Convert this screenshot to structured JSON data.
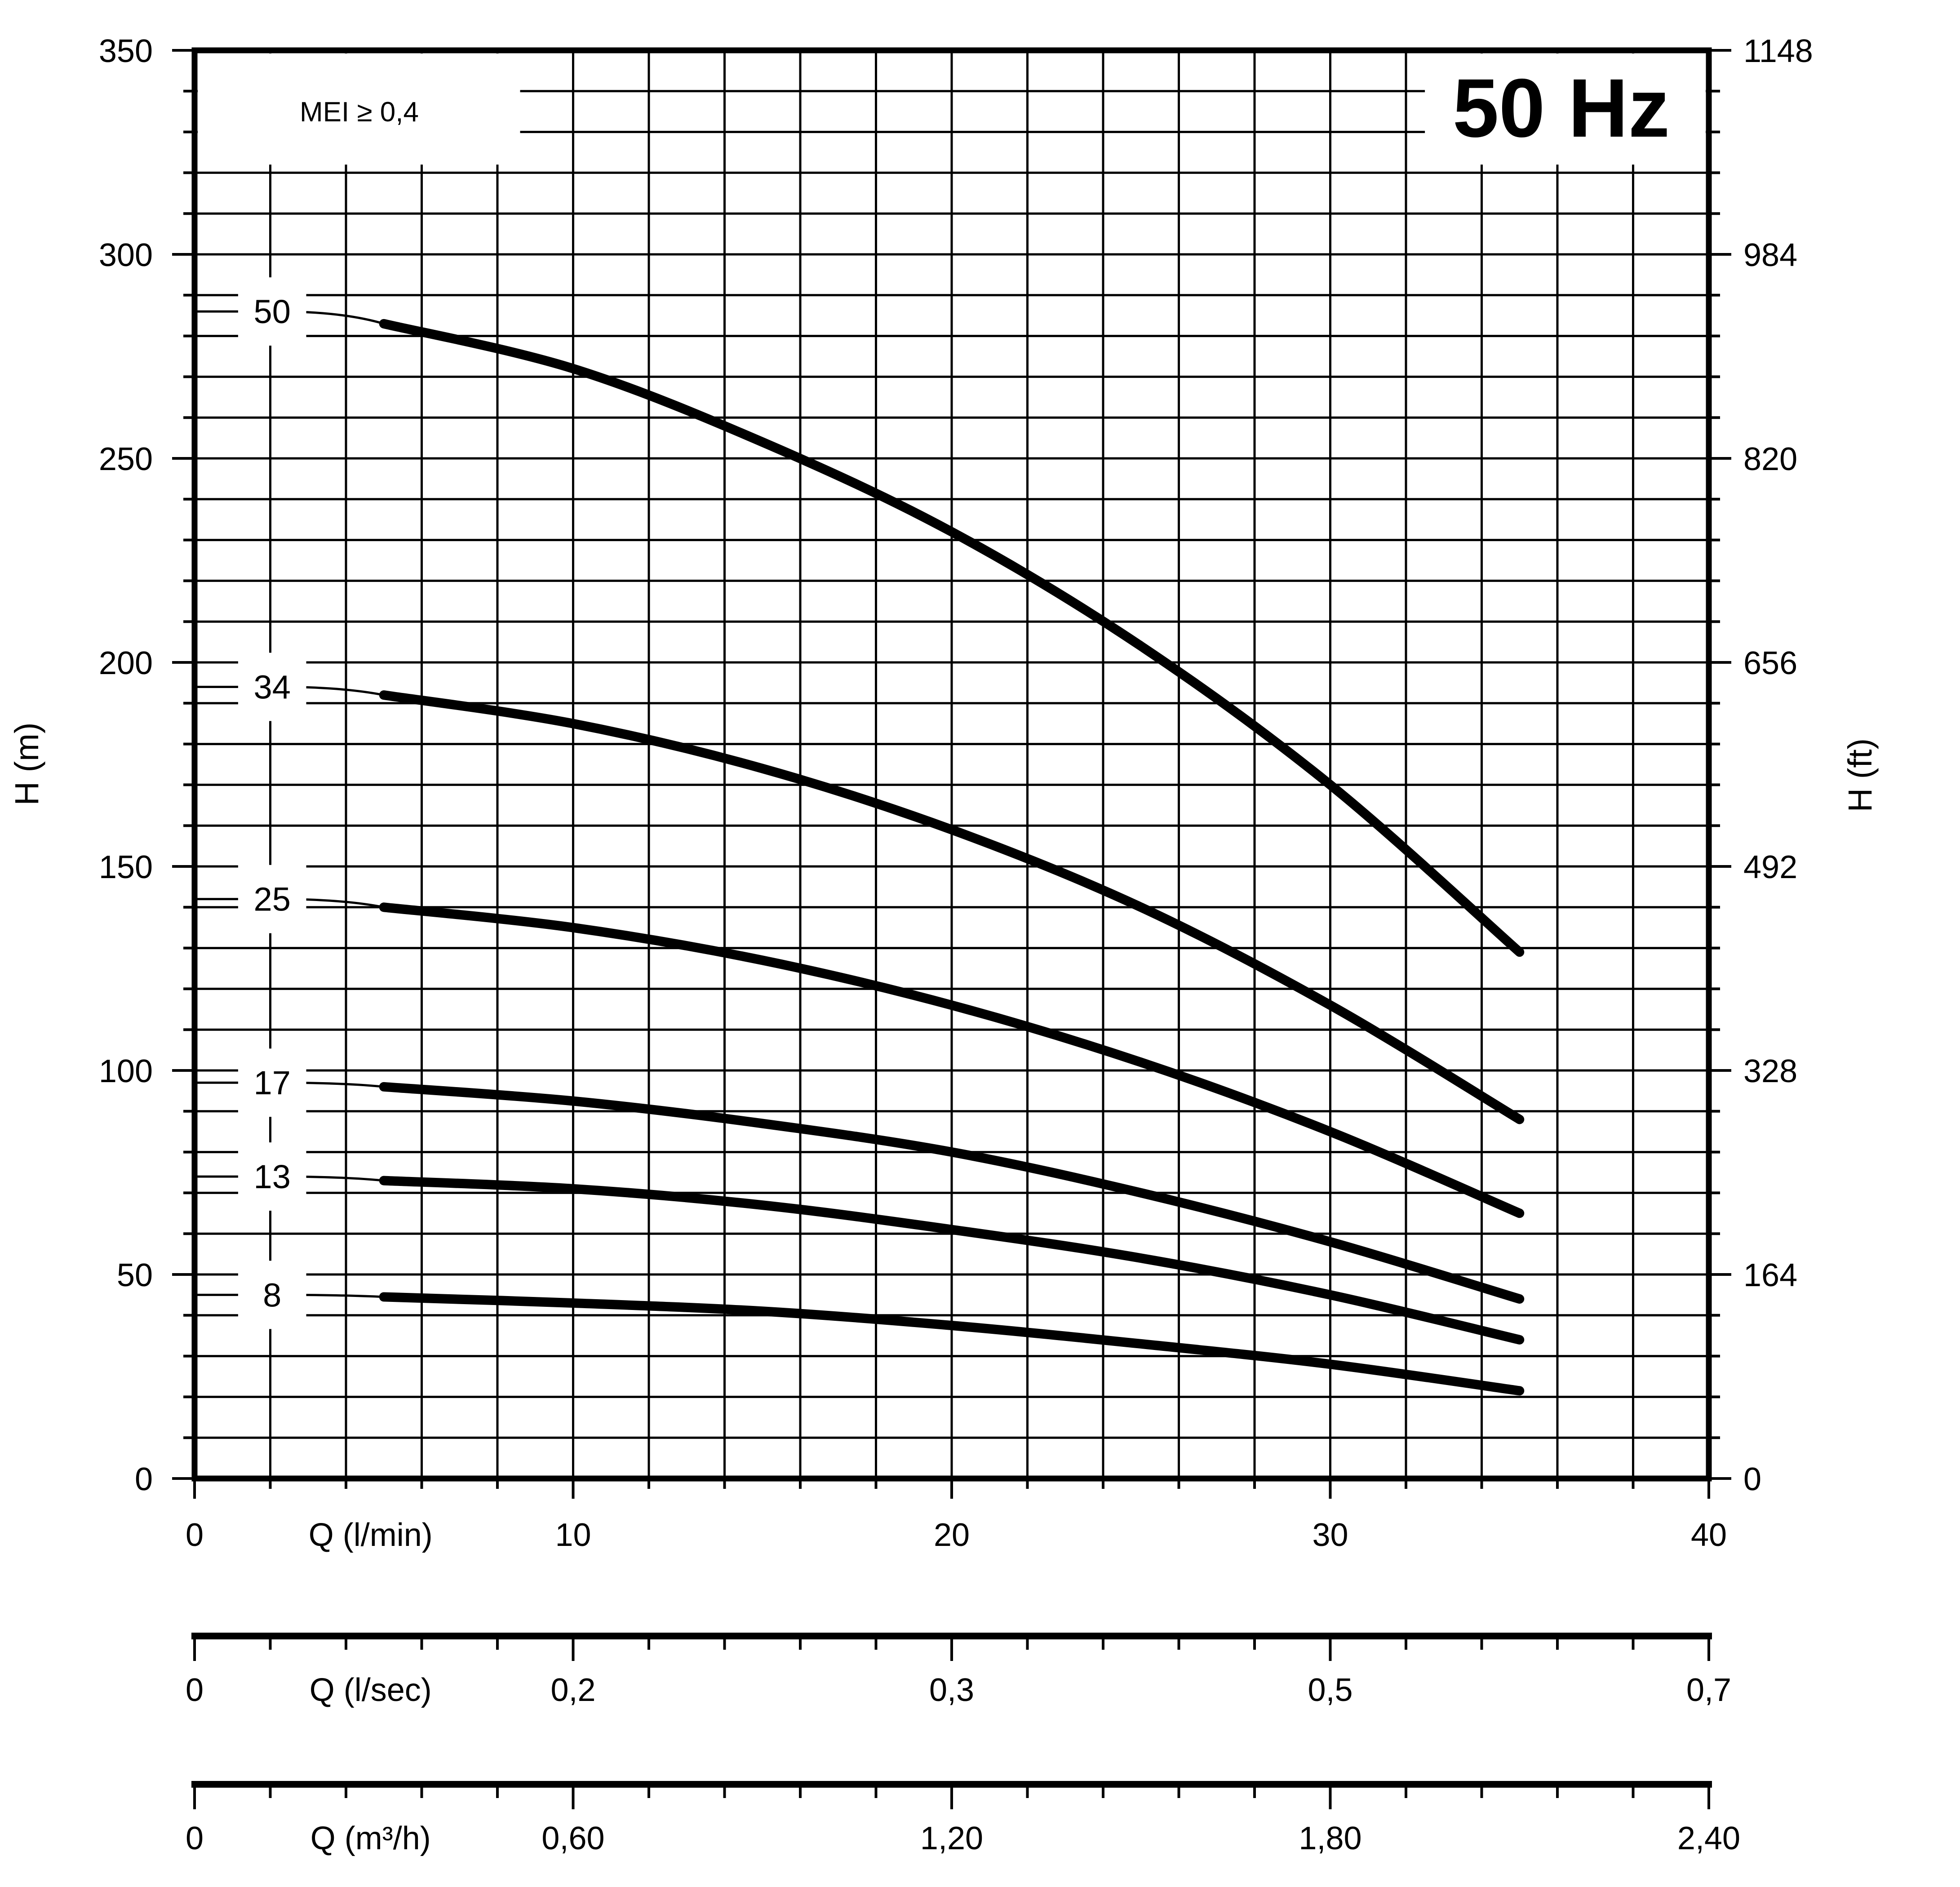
{
  "page": {
    "background": "#ffffff",
    "foreground": "#000000",
    "title": "50 Hz",
    "annotation": "MEI ≥ 0,4"
  },
  "chart_data": {
    "type": "line",
    "title": "50 Hz",
    "annotation": "MEI ≥ 0,4",
    "grid": "on",
    "legend_position": "inline-curve-labels",
    "x_axis": {
      "label": "Q (l/min)",
      "min": 0,
      "max": 40,
      "major_tick_values": [
        0,
        10,
        20,
        30,
        40
      ],
      "major_tick_labels": [
        "0",
        "10",
        "20",
        "30",
        "40"
      ],
      "minor_step": 2,
      "grid_step": 2
    },
    "y_axis_left": {
      "label": "H (m)",
      "min": 0,
      "max": 350,
      "major_step": 50,
      "minor_step": 10,
      "grid_step": 10,
      "tick_labels": [
        "0",
        "50",
        "100",
        "150",
        "200",
        "250",
        "300",
        "350"
      ]
    },
    "y_axis_right": {
      "label": "H (ft)",
      "tick_values_m": [
        0,
        50,
        100,
        150,
        200,
        250,
        300,
        350
      ],
      "tick_labels": [
        "0",
        "164",
        "328",
        "492",
        "656",
        "820",
        "984",
        "1148"
      ]
    },
    "secondary_x_axes": [
      {
        "label": "Q (l/sec)",
        "positions_lmin": [
          0,
          10,
          20,
          30,
          40
        ],
        "tick_labels": [
          "0",
          "0,2",
          "0,3",
          "0,5",
          "0,7"
        ]
      },
      {
        "label": "Q (m³/h)",
        "positions_lmin": [
          0,
          10,
          20,
          30,
          40
        ],
        "tick_labels": [
          "0",
          "0,60",
          "1,20",
          "1,80",
          "2,40"
        ]
      }
    ],
    "series": [
      {
        "name": "50",
        "label_q": 2.05,
        "q": [
          0,
          5,
          10,
          15,
          20,
          25,
          30,
          35
        ],
        "h": [
          286,
          283,
          272,
          254,
          232,
          204,
          170,
          129
        ]
      },
      {
        "name": "34",
        "label_q": 2.05,
        "q": [
          0,
          5,
          10,
          15,
          20,
          25,
          30,
          35
        ],
        "h": [
          194,
          192,
          185,
          174,
          159,
          140,
          116,
          88
        ]
      },
      {
        "name": "25",
        "label_q": 2.05,
        "q": [
          0,
          5,
          10,
          15,
          20,
          25,
          30,
          35
        ],
        "h": [
          142,
          140,
          135,
          127,
          116,
          102,
          85,
          65
        ]
      },
      {
        "name": "17",
        "label_q": 2.05,
        "q": [
          0,
          5,
          10,
          15,
          20,
          25,
          30,
          35
        ],
        "h": [
          97,
          96,
          92.5,
          87,
          80,
          70,
          58,
          44
        ]
      },
      {
        "name": "13",
        "label_q": 2.05,
        "q": [
          0,
          5,
          10,
          15,
          20,
          25,
          30,
          35
        ],
        "h": [
          74,
          73,
          71,
          67,
          61,
          54,
          45,
          34
        ]
      },
      {
        "name": "8",
        "label_q": 2.05,
        "q": [
          0,
          5,
          10,
          15,
          20,
          25,
          30,
          35
        ],
        "h": [
          45,
          44.5,
          43,
          41,
          37.5,
          33,
          28,
          21.5
        ]
      }
    ]
  }
}
